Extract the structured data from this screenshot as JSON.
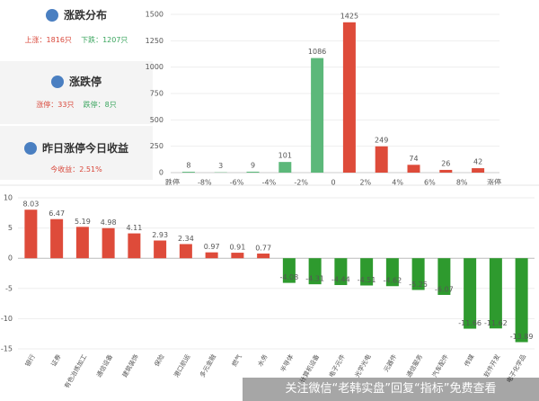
{
  "panels": {
    "distribution": {
      "title": "涨跌分布",
      "up": "上涨：1816只",
      "down": "下跌：1207只"
    },
    "limit": {
      "title": "涨跌停",
      "up": "涨停：33只",
      "down": "跌停：8只"
    },
    "yesterday": {
      "title": "昨日涨停今日收益",
      "value": "今收益：2.51%"
    }
  },
  "chart_data": [
    {
      "type": "bar",
      "bin_labels": [
        "跌停",
        "-8%",
        "-6%",
        "-4%",
        "-2%",
        "0",
        "2%",
        "4%",
        "6%",
        "8%",
        "涨停"
      ],
      "values": [
        8,
        3,
        9,
        101,
        1086,
        1425,
        249,
        74,
        26,
        42
      ],
      "colors": [
        "#5cb87a",
        "#5cb87a",
        "#5cb87a",
        "#5cb87a",
        "#5cb87a",
        "#de4b3a",
        "#de4b3a",
        "#de4b3a",
        "#de4b3a",
        "#de4b3a"
      ],
      "ylim": [
        0,
        1500
      ],
      "yticks": [
        0,
        250,
        500,
        750,
        1000,
        1250,
        1500
      ],
      "grid": true
    },
    {
      "type": "bar",
      "categories": [
        "银行",
        "证券",
        "有色冶炼加工",
        "通信设备",
        "建筑装饰",
        "保险",
        "港口航运",
        "多元金融",
        "燃气",
        "水务",
        "半导体",
        "计算机设备",
        "电子元件",
        "光学光电",
        "元器件",
        "通信服务",
        "汽车配件",
        "传媒",
        "软件开发",
        "电子化学品"
      ],
      "values": [
        8.03,
        6.47,
        5.19,
        4.98,
        4.11,
        2.93,
        2.34,
        0.97,
        0.91,
        0.77,
        -4.08,
        -4.31,
        -4.44,
        -4.51,
        -4.62,
        -5.25,
        -6.07,
        -11.66,
        -11.62,
        -13.89
      ],
      "positive_color": "#de4b3a",
      "negative_color": "#2e9a2e",
      "ylim": [
        -15,
        10
      ],
      "yticks": [
        -15,
        -10,
        -5,
        0,
        5,
        10
      ],
      "grid": true
    }
  ],
  "watermark": "关注微信“老韩实盘”回复“指标”免费查看"
}
